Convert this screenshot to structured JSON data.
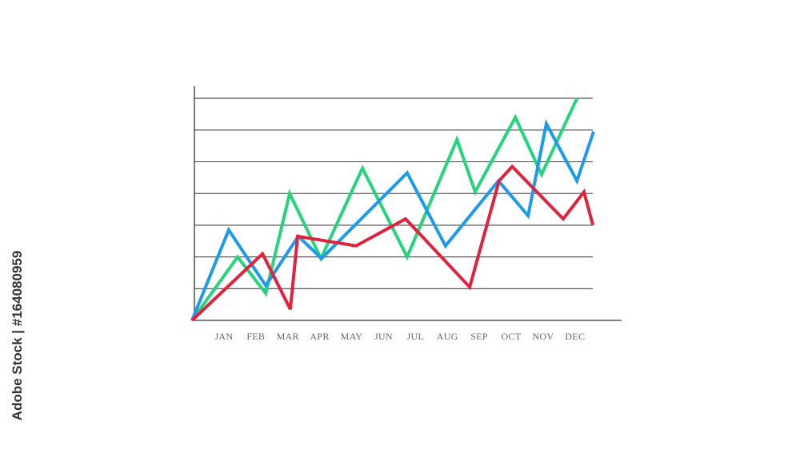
{
  "watermark": "Adobe Stock | #164080959",
  "chart_data": {
    "type": "line",
    "title": "",
    "xlabel": "",
    "ylabel": "",
    "categories": [
      "JAN",
      "FEB",
      "MAR",
      "APR",
      "MAY",
      "JUN",
      "JUL",
      "AUG",
      "SEP",
      "OCT",
      "NOV",
      "DEC"
    ],
    "xlim": [
      0,
      13
    ],
    "ylim": [
      0,
      7
    ],
    "y_gridlines": [
      1,
      2,
      3,
      4,
      5,
      6,
      7
    ],
    "grid": true,
    "legend": "none",
    "series": [
      {
        "color": "#27d37c",
        "points": [
          [
            0,
            0
          ],
          [
            1.43,
            2.0
          ],
          [
            2.31,
            0.85
          ],
          [
            3.06,
            4.0
          ],
          [
            4.04,
            1.95
          ],
          [
            5.34,
            4.8
          ],
          [
            6.74,
            2.0
          ],
          [
            8.3,
            5.7
          ],
          [
            8.87,
            4.05
          ],
          [
            10.13,
            6.4
          ],
          [
            10.95,
            4.6
          ],
          [
            12.06,
            7.0
          ]
        ]
      },
      {
        "color": "#1d9be9",
        "points": [
          [
            0,
            0
          ],
          [
            1.15,
            2.85
          ],
          [
            2.31,
            1.1
          ],
          [
            3.33,
            2.65
          ],
          [
            4.06,
            1.95
          ],
          [
            6.74,
            4.65
          ],
          [
            7.94,
            2.35
          ],
          [
            9.6,
            4.4
          ],
          [
            10.53,
            3.3
          ],
          [
            11.1,
            6.2
          ],
          [
            12.06,
            4.4
          ],
          [
            12.58,
            5.95
          ]
        ]
      },
      {
        "color": "#e0223d",
        "points": [
          [
            0,
            0
          ],
          [
            2.21,
            2.1
          ],
          [
            3.08,
            0.35
          ],
          [
            3.31,
            2.65
          ],
          [
            5.14,
            2.35
          ],
          [
            6.69,
            3.2
          ],
          [
            8.7,
            1.05
          ],
          [
            9.62,
            4.4
          ],
          [
            10.03,
            4.85
          ],
          [
            11.63,
            3.2
          ],
          [
            12.28,
            4.05
          ],
          [
            12.56,
            3.0
          ]
        ]
      }
    ]
  }
}
